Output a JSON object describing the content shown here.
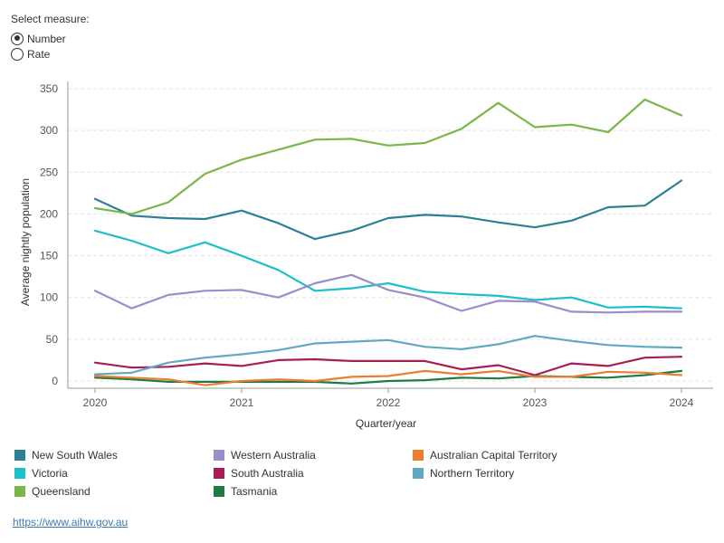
{
  "selector": {
    "title": "Select measure:",
    "options": [
      {
        "label": "Number",
        "checked": true
      },
      {
        "label": "Rate",
        "checked": false
      }
    ]
  },
  "source": {
    "link_text": "https://www.aihw.gov.au"
  },
  "chart_data": {
    "type": "line",
    "title": "",
    "xlabel": "Quarter/year",
    "ylabel": "Average nightly population",
    "xlim": [
      2020,
      2024
    ],
    "ylim": [
      0,
      350
    ],
    "x_ticks": [
      "2020",
      "2021",
      "2022",
      "2023",
      "2024"
    ],
    "y_ticks": [
      0,
      50,
      100,
      150,
      200,
      250,
      300,
      350
    ],
    "grid": "horizontal dashed",
    "legend_position": "bottom",
    "x": [
      2020.0,
      2020.25,
      2020.5,
      2020.75,
      2021.0,
      2021.25,
      2021.5,
      2021.75,
      2022.0,
      2022.25,
      2022.5,
      2022.75,
      2023.0,
      2023.25,
      2023.5,
      2023.75,
      2024.0
    ],
    "series": [
      {
        "name": "New South Wales",
        "color": "#2e7f94",
        "values": [
          218,
          198,
          195,
          194,
          204,
          189,
          170,
          180,
          195,
          199,
          197,
          190,
          184,
          192,
          208,
          210,
          240
        ]
      },
      {
        "name": "Victoria",
        "color": "#1dbfc8",
        "values": [
          180,
          168,
          153,
          166,
          150,
          133,
          108,
          111,
          117,
          107,
          104,
          102,
          97,
          100,
          88,
          89,
          87
        ]
      },
      {
        "name": "Queensland",
        "color": "#7ab648",
        "values": [
          207,
          200,
          214,
          248,
          265,
          277,
          289,
          290,
          282,
          285,
          302,
          333,
          304,
          307,
          298,
          337,
          318
        ]
      },
      {
        "name": "Western Australia",
        "color": "#9b8dc7",
        "values": [
          108,
          87,
          103,
          108,
          109,
          100,
          117,
          127,
          109,
          100,
          84,
          96,
          95,
          83,
          82,
          83,
          83
        ]
      },
      {
        "name": "South Australia",
        "color": "#a81d54",
        "values": [
          22,
          16,
          17,
          21,
          18,
          25,
          26,
          24,
          24,
          24,
          14,
          19,
          7,
          21,
          18,
          28,
          29
        ]
      },
      {
        "name": "Tasmania",
        "color": "#1f7a46",
        "values": [
          4,
          2,
          -1,
          -1,
          -1,
          -1,
          -1,
          -3,
          0,
          1,
          4,
          3,
          6,
          5,
          4,
          7,
          12
        ]
      },
      {
        "name": "Australian Capital Territory",
        "color": "#ed7d31",
        "values": [
          6,
          4,
          2,
          -5,
          0,
          2,
          0,
          5,
          6,
          12,
          8,
          12,
          5,
          5,
          11,
          10,
          7
        ]
      },
      {
        "name": "Northern Territory",
        "color": "#62a8c4",
        "values": [
          8,
          10,
          22,
          28,
          32,
          37,
          45,
          47,
          49,
          41,
          38,
          44,
          54,
          48,
          43,
          41,
          40
        ]
      }
    ]
  }
}
